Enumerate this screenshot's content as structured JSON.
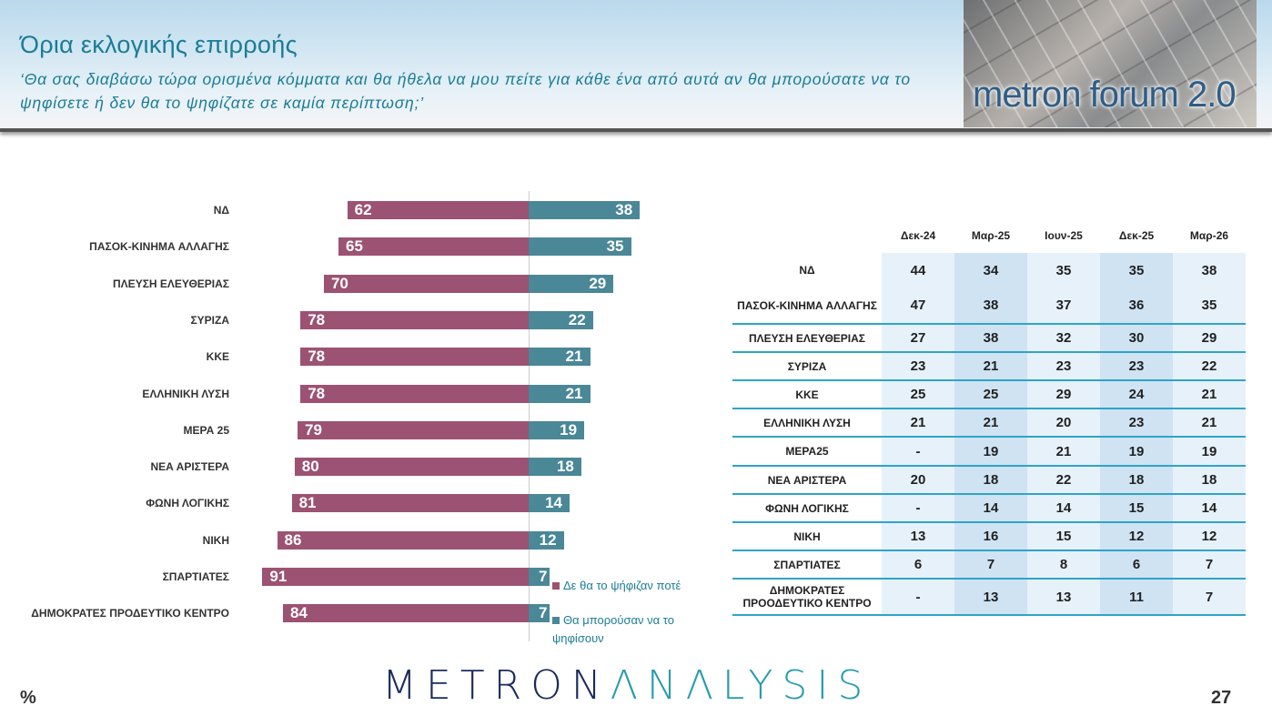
{
  "header": {
    "title": "Όρια εκλογικής επιρροής",
    "subtitle": "‘Θα σας διαβάσω τώρα ορισμένα κόμματα και θα ήθελα να μου πείτε για κάθε ένα από αυτά αν θα μπορούσατε να το ψηφίσετε ή δεν θα το ψηφίζατε σε καμία περίπτωση;’",
    "photo_text": "metron forum 2.0"
  },
  "chart_data": {
    "type": "bar",
    "orientation": "horizontal-diverging",
    "categories": [
      "ΝΔ",
      "ΠΑΣΟΚ-ΚΙΝΗΜΑ ΑΛΛΑΓΗΣ",
      "ΠΛΕΥΣΗ ΕΛΕΥΘΕΡΙΑΣ",
      "ΣΥΡΙΖΑ",
      "ΚΚΕ",
      "ΕΛΛΗΝΙΚΗ ΛΥΣΗ",
      "ΜΕΡΑ 25",
      "ΝΕΑ ΑΡΙΣΤΕΡΑ",
      "ΦΩΝΗ ΛΟΓΙΚΗΣ",
      "ΝΙΚΗ",
      "ΣΠΑΡΤΙΑΤΕΣ",
      "ΔΗΜΟΚΡΑΤΕΣ ΠΡΟΔΕΥΤΙΚΟ ΚΕΝΤΡΟ"
    ],
    "series": [
      {
        "name": "Δε θα το ψήφιζαν ποτέ",
        "color": "#9c5273",
        "values": [
          62,
          65,
          70,
          78,
          78,
          78,
          79,
          80,
          81,
          86,
          91,
          84
        ]
      },
      {
        "name": "Θα μπορούσαν να το ψηφίσουν",
        "color": "#4a8797",
        "values": [
          38,
          35,
          29,
          22,
          21,
          21,
          19,
          18,
          14,
          12,
          7,
          7
        ]
      }
    ],
    "legend": "bottom-right",
    "unit": "%"
  },
  "table": {
    "columns": [
      "Δεκ-24",
      "Μαρ-25",
      "Ιουν-25",
      "Δεκ-25",
      "Μαρ-26"
    ],
    "rows": [
      {
        "name": "ΝΔ",
        "values": [
          "44",
          "34",
          "35",
          "35",
          "38"
        ]
      },
      {
        "name": "ΠΑΣΟΚ-ΚΙΝΗΜΑ ΑΛΛΑΓΗΣ",
        "values": [
          "47",
          "38",
          "37",
          "36",
          "35"
        ]
      },
      {
        "name": "ΠΛΕΥΣΗ ΕΛΕΥΘΕΡΙΑΣ",
        "values": [
          "27",
          "38",
          "32",
          "30",
          "29"
        ]
      },
      {
        "name": "ΣΥΡΙΖΑ",
        "values": [
          "23",
          "21",
          "23",
          "23",
          "22"
        ]
      },
      {
        "name": "ΚΚΕ",
        "values": [
          "25",
          "25",
          "29",
          "24",
          "21"
        ]
      },
      {
        "name": "ΕΛΛΗΝΙΚΗ ΛΥΣΗ",
        "values": [
          "21",
          "21",
          "20",
          "23",
          "21"
        ]
      },
      {
        "name": "ΜΕΡΑ25",
        "values": [
          "-",
          "19",
          "21",
          "19",
          "19"
        ]
      },
      {
        "name": "ΝΕΑ ΑΡΙΣΤΕΡΑ",
        "values": [
          "20",
          "18",
          "22",
          "18",
          "18"
        ]
      },
      {
        "name": "ΦΩΝΗ ΛΟΓΙΚΗΣ",
        "values": [
          "-",
          "14",
          "14",
          "15",
          "14"
        ]
      },
      {
        "name": "ΝΙΚΗ",
        "values": [
          "13",
          "16",
          "15",
          "12",
          "12"
        ]
      },
      {
        "name": "ΣΠΑΡΤΙΑΤΕΣ",
        "values": [
          "6",
          "7",
          "8",
          "6",
          "7"
        ]
      },
      {
        "name": "ΔΗΜΟΚΡΑΤΕΣ ΠΡΟΟΔΕΥΤΙΚΟ ΚΕΝΤΡΟ",
        "values": [
          "-",
          "13",
          "13",
          "11",
          "7"
        ]
      }
    ]
  },
  "footer": {
    "logo_a": "METRON",
    "logo_b": "ΛNΛLYSIS",
    "percent": "%",
    "page": "27"
  }
}
